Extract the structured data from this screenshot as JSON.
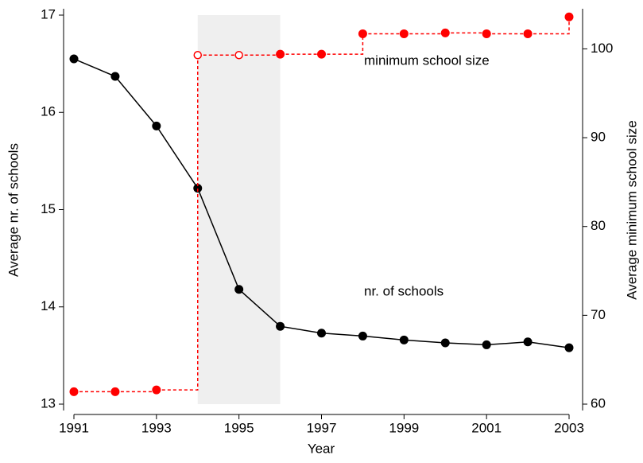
{
  "chart_data": {
    "type": "line",
    "x_label": "Year",
    "y_label": "Average nr. of schools",
    "y2_label": "Average minimum school size",
    "x": [
      1991,
      1992,
      1993,
      1994,
      1995,
      1996,
      1997,
      1998,
      1999,
      2000,
      2001,
      2002,
      2003
    ],
    "xlim": [
      1991,
      2003
    ],
    "xticks": [
      1991,
      1993,
      1995,
      1997,
      1999,
      2001,
      2003
    ],
    "ylim": [
      13,
      17
    ],
    "yticks": [
      13,
      14,
      15,
      16,
      17
    ],
    "y2lim": [
      60,
      103.8
    ],
    "y2ticks": [
      60,
      70,
      80,
      90,
      100
    ],
    "shaded_x": [
      1994,
      1996
    ],
    "series": [
      {
        "name": "nr. of schools",
        "color": "#000000",
        "step": false,
        "values": [
          16.55,
          16.37,
          15.86,
          15.22,
          14.18,
          13.8,
          13.73,
          13.7,
          13.66,
          13.63,
          13.61,
          13.64,
          13.58
        ]
      },
      {
        "name": "minimum school size",
        "color": "#ff0000",
        "step": true,
        "axis": "y2",
        "open": [
          false,
          false,
          false,
          true,
          true,
          false,
          false,
          false,
          false,
          false,
          false,
          false,
          false
        ],
        "values": [
          61.4,
          61.4,
          61.6,
          99.3,
          99.3,
          99.4,
          99.4,
          101.7,
          101.7,
          101.8,
          101.7,
          101.7,
          103.6
        ]
      }
    ]
  }
}
